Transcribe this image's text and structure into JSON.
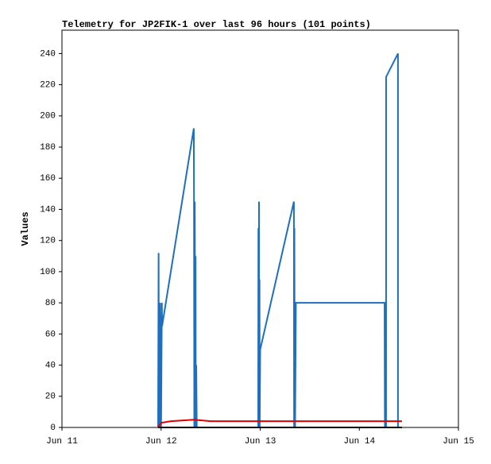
{
  "chart_data": {
    "type": "line",
    "title": "Telemetry for JP2FIK-1 over last 96 hours (101 points)",
    "y_label": "Values",
    "xlim": [
      11,
      15
    ],
    "xticks": [
      {
        "value": 11,
        "label": "Jun 11"
      },
      {
        "value": 12,
        "label": "Jun 12"
      },
      {
        "value": 13,
        "label": "Jun 13"
      },
      {
        "value": 14,
        "label": "Jun 14"
      },
      {
        "value": 15,
        "label": "Jun 15"
      }
    ],
    "ylim": [
      0,
      255
    ],
    "yticks": [
      0,
      20,
      40,
      60,
      80,
      100,
      120,
      140,
      160,
      180,
      200,
      220,
      240
    ],
    "grid": false,
    "series": [
      {
        "color": "#1f6fbf",
        "x": [
          11.97,
          11.975,
          11.978,
          11.98,
          11.982,
          11.985,
          11.988,
          11.99,
          12.0,
          12.008,
          12.01,
          12.33,
          12.332,
          12.335,
          12.34,
          12.345,
          12.348,
          12.35,
          12.355,
          12.36,
          12.98,
          12.982,
          12.985,
          12.988,
          12.99,
          12.993,
          12.995,
          13.0,
          13.34,
          13.342,
          13.345,
          13.348,
          13.35,
          13.352,
          13.36,
          14.255,
          14.258,
          14.262,
          14.266,
          14.27,
          14.27,
          14.39,
          14.39
        ],
        "values": [
          0,
          112,
          0,
          56,
          0,
          48,
          0,
          80,
          0,
          80,
          65,
          192,
          150,
          0,
          145,
          0,
          110,
          0,
          40,
          0,
          0,
          128,
          0,
          145,
          0,
          95,
          0,
          50,
          145,
          0,
          128,
          0,
          40,
          0,
          80,
          80,
          0,
          48,
          0,
          0,
          225,
          240,
          0
        ]
      },
      {
        "color": "#e00000",
        "x": [
          11.97,
          12.0,
          12.1,
          12.33,
          12.5,
          13.0,
          14.0,
          14.43
        ],
        "values": [
          0,
          3,
          4,
          5,
          4,
          4,
          4,
          4
        ]
      },
      {
        "color": "#000000",
        "x": [
          11.97,
          14.43
        ],
        "values": [
          0,
          0
        ]
      }
    ]
  }
}
